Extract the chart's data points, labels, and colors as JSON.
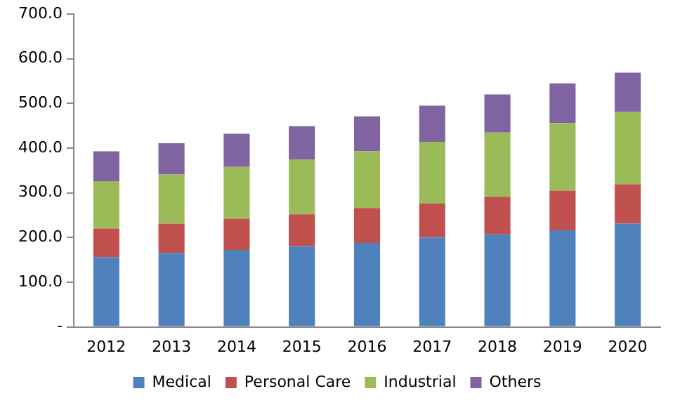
{
  "chart_data": {
    "type": "bar",
    "stacked": true,
    "categories": [
      "2012",
      "2013",
      "2014",
      "2015",
      "2016",
      "2017",
      "2018",
      "2019",
      "2020"
    ],
    "series": [
      {
        "name": "Medical",
        "color": "#4f81bd",
        "values": [
          156,
          165,
          172,
          181,
          188,
          200,
          207,
          216,
          231
        ]
      },
      {
        "name": "Personal Care",
        "color": "#c0504d",
        "values": [
          64,
          66,
          70,
          71,
          78,
          76,
          84,
          89,
          88
        ]
      },
      {
        "name": "Industrial",
        "color": "#9bbb59",
        "values": [
          106,
          110,
          116,
          123,
          127,
          138,
          144,
          151,
          162
        ]
      },
      {
        "name": "Others",
        "color": "#8064a2",
        "values": [
          67,
          70,
          74,
          74,
          78,
          81,
          85,
          89,
          88
        ]
      }
    ],
    "ylim": [
      0,
      700
    ],
    "yticks": [
      {
        "value": 0,
        "label": "-"
      },
      {
        "value": 100,
        "label": "100.0"
      },
      {
        "value": 200,
        "label": "200.0"
      },
      {
        "value": 300,
        "label": "300.0"
      },
      {
        "value": 400,
        "label": "400.0"
      },
      {
        "value": 500,
        "label": "500.0"
      },
      {
        "value": 600,
        "label": "600.0"
      },
      {
        "value": 700,
        "label": "700.0"
      }
    ],
    "grid": false,
    "legend": "bottom"
  }
}
